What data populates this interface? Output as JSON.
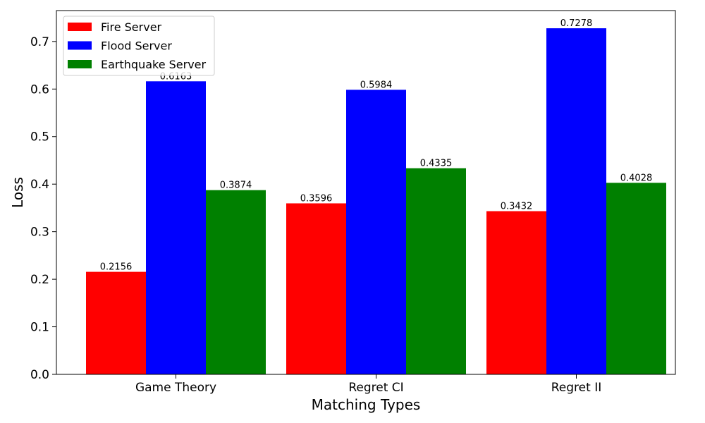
{
  "chart_data": {
    "type": "bar",
    "title": "",
    "xlabel": "Matching Types",
    "ylabel": "Loss",
    "categories": [
      "Game Theory",
      "Regret CI",
      "Regret II"
    ],
    "series": [
      {
        "name": "Fire Server",
        "color": "#ff0000",
        "values": [
          0.2156,
          0.3596,
          0.3432
        ],
        "labels": [
          "0.2156",
          "0.3596",
          "0.3432"
        ]
      },
      {
        "name": "Flood Server",
        "color": "#0000ff",
        "values": [
          0.6163,
          0.5984,
          0.7278
        ],
        "labels": [
          "0.6163",
          "0.5984",
          "0.7278"
        ]
      },
      {
        "name": "Earthquake Server",
        "color": "#008000",
        "values": [
          0.3874,
          0.4335,
          0.4028
        ],
        "labels": [
          "0.3874",
          "0.4335",
          "0.4028"
        ]
      }
    ],
    "ylim": [
      0,
      0.765
    ],
    "yticks": [
      0.0,
      0.1,
      0.2,
      0.3,
      0.4,
      0.5,
      0.6,
      0.7
    ],
    "ytick_labels": [
      "0.0",
      "0.1",
      "0.2",
      "0.3",
      "0.4",
      "0.5",
      "0.6",
      "0.7"
    ],
    "grid": false,
    "legend_position": "top-left"
  }
}
